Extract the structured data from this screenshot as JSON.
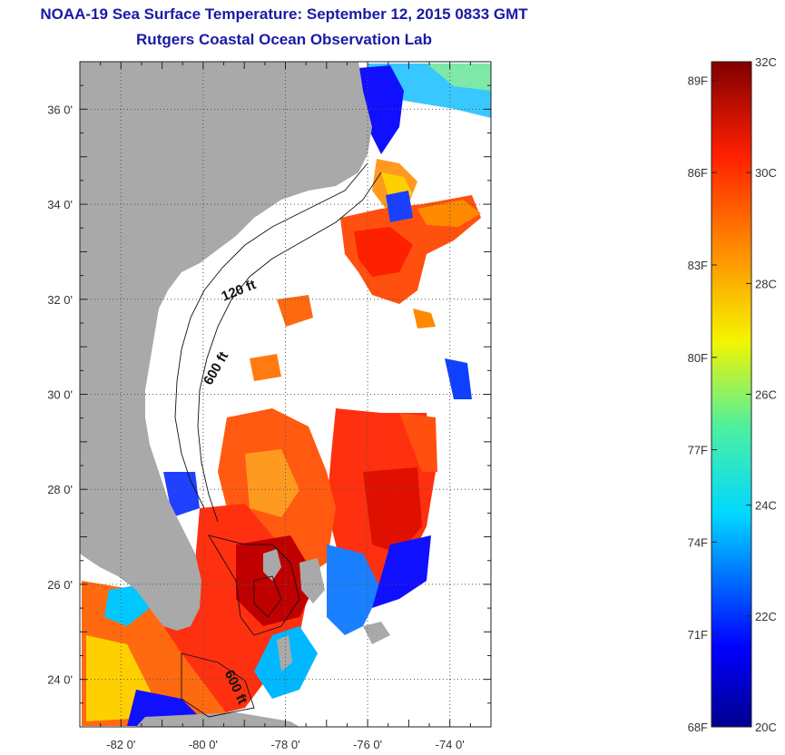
{
  "header": {
    "title": "NOAA-19 Sea Surface Temperature:  September 12, 2015 0833 GMT",
    "subtitle": "Rutgers Coastal Ocean Observation Lab"
  },
  "map": {
    "lon_range": [
      -83,
      -73
    ],
    "lat_range": [
      23,
      37
    ],
    "lon_ticks": [
      {
        "lon": -82,
        "label": "-82 0'"
      },
      {
        "lon": -80,
        "label": "-80 0'"
      },
      {
        "lon": -78,
        "label": "-78 0'"
      },
      {
        "lon": -76,
        "label": "-76 0'"
      },
      {
        "lon": -74,
        "label": "-74 0'"
      }
    ],
    "lat_ticks": [
      {
        "lat": 36,
        "label": "36 0'"
      },
      {
        "lat": 34,
        "label": "34 0'"
      },
      {
        "lat": 32,
        "label": "32 0'"
      },
      {
        "lat": 30,
        "label": "30 0'"
      },
      {
        "lat": 28,
        "label": "28 0'"
      },
      {
        "lat": 26,
        "label": "26 0'"
      },
      {
        "lat": 24,
        "label": "24 0'"
      }
    ],
    "contour_labels": [
      {
        "text": "120 ft",
        "lon": -79.1,
        "lat": 32.1,
        "rotate": -22
      },
      {
        "text": "600 ft",
        "lon": -79.6,
        "lat": 30.5,
        "rotate": -60
      },
      {
        "text": "600 ft",
        "lon": -79.3,
        "lat": 23.8,
        "rotate": 65
      }
    ],
    "land_color": "#a9a9a9",
    "cloud_color": "#ffffff"
  },
  "colorbar": {
    "fahrenheit_labels": [
      "89F",
      "86F",
      "83F",
      "80F",
      "77F",
      "74F",
      "71F",
      "68F"
    ],
    "celsius_labels": [
      "32C",
      "30C",
      "28C",
      "26C",
      "24C",
      "22C",
      "20C"
    ],
    "temp_range_c": [
      20,
      32
    ]
  }
}
